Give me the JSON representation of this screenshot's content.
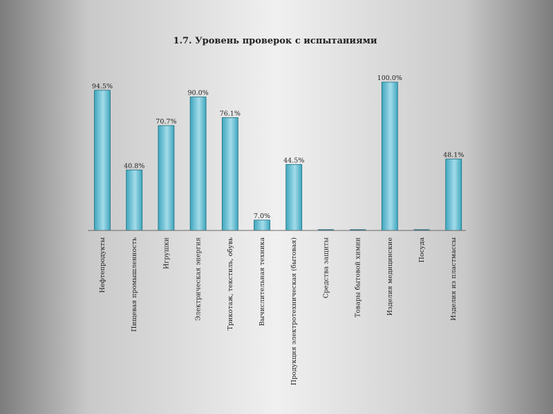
{
  "chart_data": {
    "type": "bar",
    "title": "1.7. Уровень проверок с испытаниями",
    "xlabel": "",
    "ylabel": "",
    "ylim": [
      0,
      100
    ],
    "grid": false,
    "legend": "none",
    "bar_color": "#3fa6bd",
    "bar_highlight": "#a3dcea",
    "bar_edge": "#1d6f82",
    "categories": [
      "Нефтепродукты",
      "Пищевая промышленность",
      "Игрушки",
      "Электрическая энергия",
      "Трикотаж, текстиль, обувь",
      "Вычислительная техника",
      "Продукция электротехническая (бытовая)",
      "Средства защиты",
      "Товары бытовой химии",
      "Изделия медицинские",
      "Посуда",
      "Изделия из пластмассы"
    ],
    "values": [
      94.5,
      40.8,
      70.7,
      90.0,
      76.1,
      7.0,
      44.5,
      0,
      0,
      100.0,
      0,
      48.1
    ],
    "value_labels": [
      "94.5%",
      "40.8%",
      "70.7%",
      "90.0%",
      "76.1%",
      "7.0%",
      "44.5%",
      "",
      "",
      "100.0%",
      "",
      "48.1%"
    ]
  }
}
